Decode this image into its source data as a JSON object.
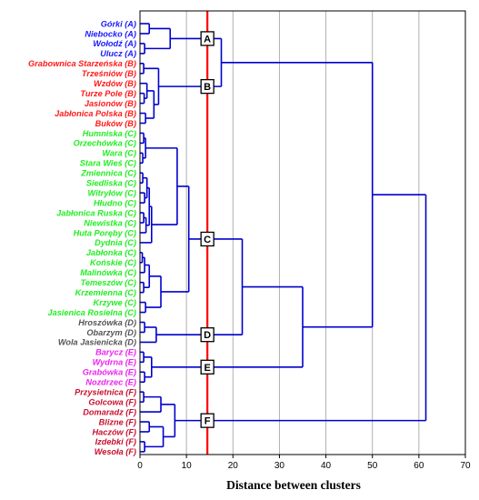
{
  "chart_data": {
    "type": "dendrogram",
    "orientation": "horizontal",
    "xlabel": "Distance between clusters",
    "xlim": [
      0,
      70
    ],
    "xticks": [
      0,
      10,
      20,
      30,
      40,
      50,
      60,
      70
    ],
    "grid": true,
    "cut_line": 14.5,
    "colors": {
      "A": "#1a1aff",
      "B": "#ff1a1a",
      "C": "#22ee22",
      "D": "#555555",
      "E": "#ee22ee",
      "F": "#c8102e",
      "tree": "#0000cc",
      "cut": "#ff0000",
      "grid": "#b0b0b0"
    },
    "leaves": [
      {
        "label": "Górki (A)",
        "group": "A"
      },
      {
        "label": "Niebocko (A)",
        "group": "A"
      },
      {
        "label": "Wołodź (A)",
        "group": "A"
      },
      {
        "label": "Ulucz (A)",
        "group": "A"
      },
      {
        "label": "Grabownica Starzeńska (B)",
        "group": "B"
      },
      {
        "label": "Trześniów (B)",
        "group": "B"
      },
      {
        "label": "Wzdów (B)",
        "group": "B"
      },
      {
        "label": "Turze Pole (B)",
        "group": "B"
      },
      {
        "label": "Jasionów (B)",
        "group": "B"
      },
      {
        "label": "Jabłonica Polska (B)",
        "group": "B"
      },
      {
        "label": "Buków (B)",
        "group": "B"
      },
      {
        "label": "Humniska (C)",
        "group": "C"
      },
      {
        "label": "Orzechówka (C)",
        "group": "C"
      },
      {
        "label": "Wara (C)",
        "group": "C"
      },
      {
        "label": "Stara Wieś (C)",
        "group": "C"
      },
      {
        "label": "Zmiennica (C)",
        "group": "C"
      },
      {
        "label": "Siedliska (C)",
        "group": "C"
      },
      {
        "label": "Witryłów (C)",
        "group": "C"
      },
      {
        "label": "Hłudno (C)",
        "group": "C"
      },
      {
        "label": "Jabłonica Ruska (C)",
        "group": "C"
      },
      {
        "label": "Niewistka (C)",
        "group": "C"
      },
      {
        "label": "Huta Poręby (C)",
        "group": "C"
      },
      {
        "label": "Dydnia (C)",
        "group": "C"
      },
      {
        "label": "Jabłonka (C)",
        "group": "C"
      },
      {
        "label": "Końskie (C)",
        "group": "C"
      },
      {
        "label": "Malinówka (C)",
        "group": "C"
      },
      {
        "label": "Temeszów (C)",
        "group": "C"
      },
      {
        "label": "Krzemienna (C)",
        "group": "C"
      },
      {
        "label": "Krzywe (C)",
        "group": "C"
      },
      {
        "label": "Jasienica Rosielna (C)",
        "group": "C"
      },
      {
        "label": "Hroszówka (D)",
        "group": "D"
      },
      {
        "label": "Obarzym (D)",
        "group": "D"
      },
      {
        "label": "Wola Jasienicka (D)",
        "group": "D"
      },
      {
        "label": "Barycz (E)",
        "group": "E"
      },
      {
        "label": "Wydrna (E)",
        "group": "E"
      },
      {
        "label": "Grabówka (E)",
        "group": "E"
      },
      {
        "label": "Nozdrzec (E)",
        "group": "E"
      },
      {
        "label": "Przysietnica (F)",
        "group": "F"
      },
      {
        "label": "Golcowa (F)",
        "group": "F"
      },
      {
        "label": "Domaradz (F)",
        "group": "F"
      },
      {
        "label": "Blizne (F)",
        "group": "F"
      },
      {
        "label": "Haczów (F)",
        "group": "F"
      },
      {
        "label": "Izdebki (F)",
        "group": "F"
      },
      {
        "label": "Wesoła (F)",
        "group": "F"
      }
    ],
    "merges": [
      {
        "id": "a1",
        "children": [
          0,
          1
        ],
        "height": 2.0
      },
      {
        "id": "a2",
        "children": [
          2,
          3
        ],
        "height": 1.0
      },
      {
        "id": "a3",
        "children": [
          "a1",
          "a2"
        ],
        "height": 6.5
      },
      {
        "id": "b1",
        "children": [
          4,
          5
        ],
        "height": 0.8
      },
      {
        "id": "b2",
        "children": [
          7,
          8
        ],
        "height": 0.9
      },
      {
        "id": "b3",
        "children": [
          6,
          "b2"
        ],
        "height": 1.5
      },
      {
        "id": "b4",
        "children": [
          9,
          10
        ],
        "height": 1.2
      },
      {
        "id": "b5",
        "children": [
          "b3",
          "b4"
        ],
        "height": 3.0
      },
      {
        "id": "b6",
        "children": [
          "b1",
          "b5"
        ],
        "height": 4.0
      },
      {
        "id": "AB",
        "children": [
          "a3",
          "b6"
        ],
        "height": 17.5
      },
      {
        "id": "c1",
        "children": [
          11,
          12
        ],
        "height": 0.8
      },
      {
        "id": "c2",
        "children": [
          13,
          14
        ],
        "height": 0.6
      },
      {
        "id": "c3",
        "children": [
          "c1",
          "c2"
        ],
        "height": 1.2
      },
      {
        "id": "c4",
        "children": [
          15,
          16
        ],
        "height": 0.6
      },
      {
        "id": "c5",
        "children": [
          17,
          18
        ],
        "height": 1.0
      },
      {
        "id": "c6",
        "children": [
          "c4",
          "c5"
        ],
        "height": 1.5
      },
      {
        "id": "c7",
        "children": [
          19,
          20
        ],
        "height": 0.8
      },
      {
        "id": "c8",
        "children": [
          "c7",
          21
        ],
        "height": 1.3
      },
      {
        "id": "c9",
        "children": [
          "c6",
          "c8"
        ],
        "height": 2.0
      },
      {
        "id": "c10",
        "children": [
          "c9",
          22
        ],
        "height": 2.5
      },
      {
        "id": "c11",
        "children": [
          "c3",
          "c10"
        ],
        "height": 8.0
      },
      {
        "id": "c12",
        "children": [
          23,
          24
        ],
        "height": 0.5
      },
      {
        "id": "c13",
        "children": [
          "c12",
          25
        ],
        "height": 1.0
      },
      {
        "id": "c14",
        "children": [
          26,
          27
        ],
        "height": 0.8
      },
      {
        "id": "c15",
        "children": [
          "c13",
          "c14"
        ],
        "height": 2.0
      },
      {
        "id": "c16",
        "children": [
          28,
          29
        ],
        "height": 1.2
      },
      {
        "id": "c17",
        "children": [
          "c15",
          "c16"
        ],
        "height": 4.5
      },
      {
        "id": "C",
        "children": [
          "c11",
          "c17"
        ],
        "height": 10.5
      },
      {
        "id": "d1",
        "children": [
          30,
          31
        ],
        "height": 1.0
      },
      {
        "id": "D",
        "children": [
          "d1",
          32
        ],
        "height": 3.5
      },
      {
        "id": "CD",
        "children": [
          "C",
          "D"
        ],
        "height": 22.0
      },
      {
        "id": "e1",
        "children": [
          33,
          34
        ],
        "height": 0.8
      },
      {
        "id": "e2",
        "children": [
          35,
          36
        ],
        "height": 1.0
      },
      {
        "id": "E",
        "children": [
          "e1",
          "e2"
        ],
        "height": 2.5
      },
      {
        "id": "CDE",
        "children": [
          "CD",
          "E"
        ],
        "height": 35.0
      },
      {
        "id": "ABCDE",
        "children": [
          "AB",
          "CDE"
        ],
        "height": 50.0
      },
      {
        "id": "f1",
        "children": [
          37,
          38
        ],
        "height": 0.8
      },
      {
        "id": "f2",
        "children": [
          "f1",
          39
        ],
        "height": 4.5
      },
      {
        "id": "f3",
        "children": [
          40,
          41
        ],
        "height": 2.0
      },
      {
        "id": "f4",
        "children": [
          42,
          43
        ],
        "height": 1.0
      },
      {
        "id": "f5",
        "children": [
          "f3",
          "f4"
        ],
        "height": 5.0
      },
      {
        "id": "F",
        "children": [
          "f2",
          "f5"
        ],
        "height": 7.5
      },
      {
        "id": "root",
        "children": [
          "ABCDE",
          "F"
        ],
        "height": 61.5
      }
    ],
    "cluster_markers": [
      {
        "label": "A",
        "branch": "a3"
      },
      {
        "label": "B",
        "branch": "b6"
      },
      {
        "label": "C",
        "branch": "C"
      },
      {
        "label": "D",
        "branch": "D"
      },
      {
        "label": "E",
        "branch": "E"
      },
      {
        "label": "F",
        "branch": "F"
      }
    ]
  }
}
